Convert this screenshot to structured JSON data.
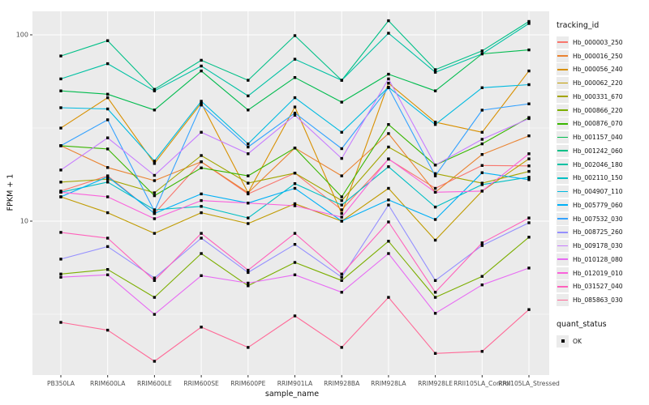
{
  "figure": {
    "x_axis_title": "sample_name",
    "y_axis_title": "FPKM + 1",
    "legend1_title": "tracking_id",
    "legend2_title": "quant_status",
    "legend2_item": "OK",
    "panel_color": "#EBEBEB",
    "gridline_color": "#FFFFFF",
    "tick_label_color": "#4D4D4D",
    "marker_color": "#000000"
  },
  "chart_data": {
    "type": "line",
    "title": "",
    "xlabel": "sample_name",
    "ylabel": "FPKM + 1",
    "y_scale": "log10",
    "ylim": [
      1.49,
      134
    ],
    "y_major_ticks": [
      10,
      100
    ],
    "y_minor_gridlines": [
      3.162,
      31.62
    ],
    "grid": true,
    "legend_position": "right",
    "marker": "black-square",
    "marker_legend": {
      "title": "quant_status",
      "items": [
        "OK"
      ]
    },
    "categories": [
      "PB350LA",
      "RRIM600LA",
      "RRIM600LE",
      "RRIM600SE",
      "RRIM600PE",
      "RRIM901LA",
      "RRIM928BA",
      "RRIM928LA",
      "RRIM928LE",
      "RRII105LA_Control",
      "RRII105LA_Stressed"
    ],
    "series": [
      {
        "name": "Hb_000003_250",
        "color": "#F8766D",
        "values": [
          14.5,
          17.5,
          11.0,
          20.8,
          14.0,
          18.1,
          11.5,
          21.5,
          15.0,
          19.9,
          19.8
        ]
      },
      {
        "name": "Hb_000016_250",
        "color": "#EA8331",
        "values": [
          25.4,
          19.4,
          16.5,
          20.8,
          14.2,
          24.7,
          17.5,
          29.5,
          14.3,
          22.8,
          28.7
        ]
      },
      {
        "name": "Hb_000056_240",
        "color": "#D89000",
        "values": [
          31.6,
          46,
          20.4,
          43,
          14.2,
          41,
          11.0,
          55,
          34,
          30,
          64
        ]
      },
      {
        "name": "Hb_000062_220",
        "color": "#C09B00",
        "values": [
          13.5,
          11.1,
          8.6,
          11.1,
          9.7,
          12.4,
          10.0,
          15.0,
          7.9,
          14.5,
          21.6
        ]
      },
      {
        "name": "Hb_000331_670",
        "color": "#A3A500",
        "values": [
          16.2,
          16.8,
          14.2,
          22.5,
          16.0,
          18.1,
          12.9,
          25.0,
          18.0,
          16.0,
          18.5
        ]
      },
      {
        "name": "Hb_000866_220",
        "color": "#7CAE00",
        "values": [
          5.2,
          5.5,
          3.9,
          6.7,
          4.5,
          6.0,
          4.8,
          7.8,
          3.9,
          5.05,
          8.2
        ]
      },
      {
        "name": "Hb_000876_070",
        "color": "#39B600",
        "values": [
          25.4,
          24.4,
          13.7,
          19.3,
          17.5,
          24.7,
          13.5,
          33,
          20,
          26,
          36
        ]
      },
      {
        "name": "Hb_001157_040",
        "color": "#00BB4E",
        "values": [
          50,
          48,
          39.5,
          64,
          39.5,
          59,
          43.5,
          61.5,
          50,
          79,
          83
        ]
      },
      {
        "name": "Hb_001242_060",
        "color": "#00C087",
        "values": [
          77,
          93,
          51,
          73,
          57,
          99,
          57,
          119,
          65,
          82,
          118
        ]
      },
      {
        "name": "Hb_002046_180",
        "color": "#00C1A3",
        "values": [
          58,
          70,
          50,
          68,
          47,
          74,
          57,
          102,
          63,
          79,
          115
        ]
      },
      {
        "name": "Hb_002110_150",
        "color": "#00BFC4",
        "values": [
          14.3,
          16.2,
          11.5,
          12.0,
          10.4,
          15.9,
          12.2,
          19.6,
          11.9,
          15.7,
          17.2
        ]
      },
      {
        "name": "Hb_004907_110",
        "color": "#00BAE0",
        "values": [
          40.6,
          40,
          21,
          44,
          26,
          46,
          30,
          52.3,
          33,
          52,
          54
        ]
      },
      {
        "name": "Hb_005779_060",
        "color": "#00B0F6",
        "values": [
          13.5,
          17.3,
          11.0,
          14.0,
          12.5,
          15.0,
          10.0,
          13.0,
          10.2,
          18.2,
          16.7
        ]
      },
      {
        "name": "Hb_007532_030",
        "color": "#35A2FF",
        "values": [
          25.4,
          35,
          11.3,
          42,
          25,
          38,
          24.5,
          52,
          17.5,
          39.4,
          42.6
        ]
      },
      {
        "name": "Hb_008725_260",
        "color": "#9590FF",
        "values": [
          6.25,
          7.3,
          4.95,
          8.1,
          5.3,
          7.5,
          5.0,
          12.2,
          4.8,
          7.4,
          9.8
        ]
      },
      {
        "name": "Hb_009178_030",
        "color": "#C77CFF",
        "values": [
          18.8,
          28,
          17.6,
          30,
          23,
          37,
          21.7,
          58,
          20,
          27.5,
          35.5
        ]
      },
      {
        "name": "Hb_010128_080",
        "color": "#E76BF3",
        "values": [
          5.0,
          5.15,
          3.16,
          5.1,
          4.65,
          5.15,
          4.15,
          6.7,
          3.2,
          4.55,
          5.6
        ]
      },
      {
        "name": "Hb_012019_010",
        "color": "#FA62DB",
        "values": [
          14.3,
          13.5,
          10.3,
          12.9,
          12.5,
          12.1,
          10.5,
          21.6,
          14.3,
          14.5,
          23
        ]
      },
      {
        "name": "Hb_031527_040",
        "color": "#FF62BC",
        "values": [
          8.7,
          8.1,
          4.8,
          8.6,
          5.45,
          8.6,
          5.2,
          9.9,
          4.15,
          7.65,
          10.4
        ]
      },
      {
        "name": "Hb_085863_030",
        "color": "#FF6A98",
        "values": [
          2.86,
          2.6,
          1.77,
          2.7,
          2.1,
          3.1,
          2.1,
          3.9,
          1.95,
          2.0,
          3.35
        ]
      }
    ]
  }
}
